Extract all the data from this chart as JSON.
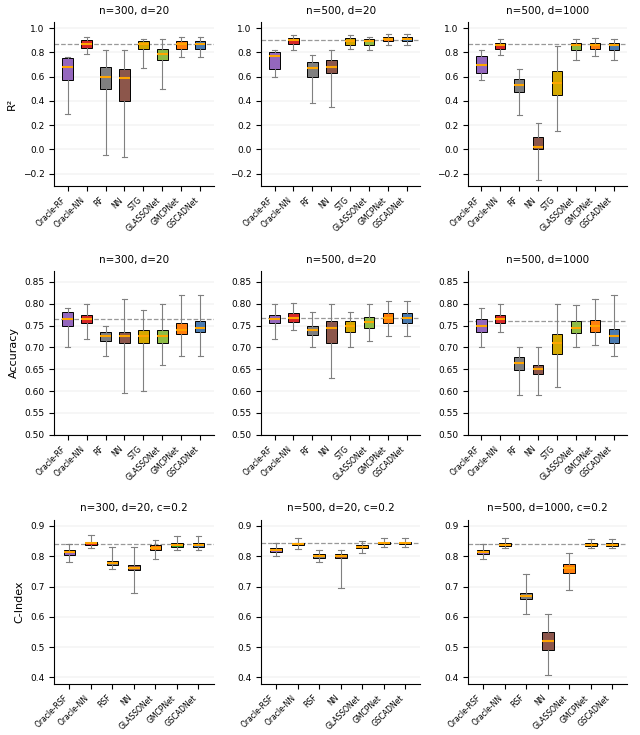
{
  "subplot_titles": [
    [
      "n=300, d=20",
      "n=500, d=20",
      "n=500, d=1000"
    ],
    [
      "n=300, d=20",
      "n=500, d=20",
      "n=500, d=1000"
    ],
    [
      "n=300, d=20, c=0.2",
      "n=500, d=20, c=0.2",
      "n=500, d=1000, c=0.2"
    ]
  ],
  "ylabels": [
    "R²",
    "Accuracy",
    "C-Index"
  ],
  "r2_xlabels": [
    "Oracle-RF",
    "Oracle-NN",
    "RF",
    "NN",
    "STG",
    "GLASSONet",
    "GMCPNet",
    "GSCADNet"
  ],
  "acc_xlabels": [
    "Oracle-RF",
    "Oracle-NN",
    "RF",
    "NN",
    "STG",
    "GLASSONet",
    "GMCPNet",
    "GSCADNet"
  ],
  "ci_xlabels": [
    "Oracle-RSF",
    "Oracle-NN",
    "RSF",
    "NN",
    "GLASSONet",
    "GMCPNet",
    "GSCADNet"
  ],
  "colors_r2": [
    "#9467bd",
    "#d62728",
    "#7f7f7f",
    "#8c564b",
    "#ff7f0e",
    "#bcbd22",
    "#ff7f0e",
    "#1f77b4"
  ],
  "colors_acc": [
    "#9467bd",
    "#d62728",
    "#7f7f7f",
    "#8c564b",
    "#ff7f0e",
    "#bcbd22",
    "#ff7f0e",
    "#1f77b4"
  ],
  "colors_ci": [
    "#9467bd",
    "#d62728",
    "#7f7f7f",
    "#8c564b",
    "#ff7f0e",
    "#2ca02c",
    "#1f77b4"
  ],
  "ylims": {
    "r2": [
      -0.3,
      1.05
    ],
    "acc": [
      0.5,
      0.875
    ],
    "ci": [
      0.38,
      0.92
    ]
  },
  "yticks": {
    "r2": [
      -0.2,
      0.0,
      0.2,
      0.4,
      0.6,
      0.8,
      1.0
    ],
    "acc": [
      0.5,
      0.55,
      0.6,
      0.65,
      0.7,
      0.75,
      0.8,
      0.85
    ],
    "ci": [
      0.4,
      0.5,
      0.6,
      0.7,
      0.8,
      0.9
    ]
  },
  "r2_stats": {
    "n300d20": {
      "med": [
        0.68,
        0.865,
        0.6,
        0.59,
        0.87,
        0.79,
        0.87,
        0.87
      ],
      "q1": [
        0.57,
        0.84,
        0.5,
        0.4,
        0.83,
        0.74,
        0.83,
        0.83
      ],
      "q3": [
        0.75,
        0.9,
        0.68,
        0.66,
        0.89,
        0.83,
        0.89,
        0.89
      ],
      "wlo": [
        0.29,
        0.79,
        -0.05,
        -0.06,
        0.67,
        0.5,
        0.76,
        0.76
      ],
      "whi": [
        0.76,
        0.93,
        0.82,
        0.82,
        0.91,
        0.91,
        0.93,
        0.93
      ],
      "dashed": 0.865
    },
    "n500d20": {
      "med": [
        0.77,
        0.9,
        0.67,
        0.68,
        0.89,
        0.89,
        0.91,
        0.91
      ],
      "q1": [
        0.66,
        0.87,
        0.6,
        0.63,
        0.86,
        0.86,
        0.89,
        0.89
      ],
      "q3": [
        0.8,
        0.92,
        0.72,
        0.74,
        0.92,
        0.91,
        0.93,
        0.93
      ],
      "wlo": [
        0.6,
        0.82,
        0.38,
        0.35,
        0.83,
        0.82,
        0.86,
        0.86
      ],
      "whi": [
        0.82,
        0.94,
        0.78,
        0.82,
        0.94,
        0.93,
        0.95,
        0.95
      ],
      "dashed": 0.9
    },
    "n500d1000": {
      "med": [
        0.7,
        0.86,
        0.53,
        0.02,
        0.55,
        0.86,
        0.86,
        0.86
      ],
      "q1": [
        0.63,
        0.83,
        0.47,
        0.0,
        0.45,
        0.82,
        0.83,
        0.82
      ],
      "q3": [
        0.77,
        0.88,
        0.58,
        0.1,
        0.65,
        0.88,
        0.88,
        0.88
      ],
      "wlo": [
        0.57,
        0.78,
        0.28,
        -0.25,
        0.15,
        0.74,
        0.77,
        0.74
      ],
      "whi": [
        0.82,
        0.91,
        0.66,
        0.22,
        0.85,
        0.91,
        0.92,
        0.91
      ],
      "dashed": 0.865
    }
  },
  "acc_stats": {
    "n300d20": {
      "med": [
        0.765,
        0.765,
        0.725,
        0.725,
        0.725,
        0.725,
        0.74,
        0.745
      ],
      "q1": [
        0.75,
        0.755,
        0.715,
        0.71,
        0.71,
        0.71,
        0.73,
        0.735
      ],
      "q3": [
        0.78,
        0.775,
        0.735,
        0.735,
        0.74,
        0.74,
        0.755,
        0.76
      ],
      "wlo": [
        0.7,
        0.72,
        0.68,
        0.595,
        0.6,
        0.66,
        0.68,
        0.68
      ],
      "whi": [
        0.79,
        0.8,
        0.75,
        0.81,
        0.785,
        0.8,
        0.82,
        0.82
      ],
      "dashed": 0.765
    },
    "n500d20": {
      "med": [
        0.765,
        0.768,
        0.74,
        0.745,
        0.75,
        0.757,
        0.767,
        0.767
      ],
      "q1": [
        0.755,
        0.758,
        0.728,
        0.71,
        0.735,
        0.745,
        0.755,
        0.755
      ],
      "q3": [
        0.775,
        0.778,
        0.75,
        0.76,
        0.76,
        0.77,
        0.778,
        0.778
      ],
      "wlo": [
        0.72,
        0.74,
        0.7,
        0.63,
        0.7,
        0.715,
        0.725,
        0.725
      ],
      "whi": [
        0.8,
        0.802,
        0.78,
        0.8,
        0.78,
        0.8,
        0.805,
        0.805
      ],
      "dashed": 0.768
    },
    "n500d1000": {
      "med": [
        0.75,
        0.765,
        0.665,
        0.651,
        0.71,
        0.745,
        0.748,
        0.726
      ],
      "q1": [
        0.735,
        0.756,
        0.648,
        0.638,
        0.685,
        0.732,
        0.735,
        0.71
      ],
      "q3": [
        0.765,
        0.773,
        0.678,
        0.66,
        0.73,
        0.76,
        0.762,
        0.742
      ],
      "wlo": [
        0.7,
        0.735,
        0.59,
        0.59,
        0.61,
        0.7,
        0.705,
        0.68
      ],
      "whi": [
        0.79,
        0.8,
        0.7,
        0.7,
        0.8,
        0.798,
        0.81,
        0.82
      ],
      "dashed": 0.76
    }
  },
  "ci_stats": {
    "n300d20": {
      "med": [
        0.813,
        0.842,
        0.778,
        0.76,
        0.828,
        0.836,
        0.836
      ],
      "q1": [
        0.805,
        0.836,
        0.772,
        0.755,
        0.82,
        0.83,
        0.83
      ],
      "q3": [
        0.82,
        0.848,
        0.785,
        0.77,
        0.836,
        0.842,
        0.842
      ],
      "wlo": [
        0.78,
        0.826,
        0.758,
        0.68,
        0.79,
        0.82,
        0.82
      ],
      "whi": [
        0.84,
        0.87,
        0.83,
        0.83,
        0.855,
        0.865,
        0.865
      ],
      "dashed": 0.84
    },
    "n500d20": {
      "med": [
        0.82,
        0.84,
        0.8,
        0.8,
        0.831,
        0.844,
        0.844
      ],
      "q1": [
        0.815,
        0.836,
        0.795,
        0.795,
        0.826,
        0.84,
        0.84
      ],
      "q3": [
        0.826,
        0.845,
        0.806,
        0.806,
        0.837,
        0.848,
        0.848
      ],
      "wlo": [
        0.8,
        0.825,
        0.782,
        0.695,
        0.81,
        0.83,
        0.83
      ],
      "whi": [
        0.842,
        0.86,
        0.82,
        0.82,
        0.85,
        0.86,
        0.86
      ],
      "dashed": 0.842
    },
    "n500d1000": {
      "med": [
        0.815,
        0.838,
        0.668,
        0.52,
        0.76,
        0.838,
        0.838
      ],
      "q1": [
        0.808,
        0.834,
        0.66,
        0.49,
        0.745,
        0.834,
        0.834
      ],
      "q3": [
        0.822,
        0.843,
        0.678,
        0.55,
        0.773,
        0.843,
        0.843
      ],
      "wlo": [
        0.79,
        0.826,
        0.61,
        0.408,
        0.69,
        0.826,
        0.826
      ],
      "whi": [
        0.84,
        0.86,
        0.74,
        0.608,
        0.81,
        0.858,
        0.858
      ],
      "dashed": 0.84
    }
  }
}
